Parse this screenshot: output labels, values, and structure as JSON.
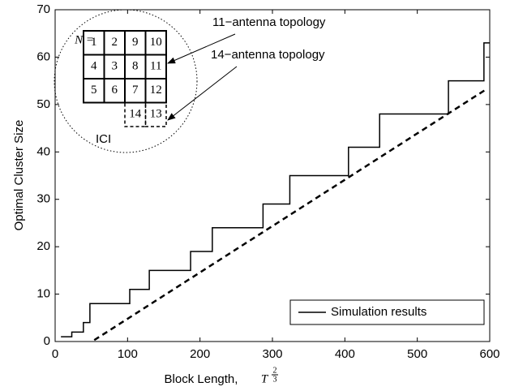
{
  "chart_data": {
    "type": "line",
    "xlabel": "Block Length,",
    "xlabel_math": {
      "base": "T",
      "num": "2",
      "den": "3"
    },
    "ylabel": "Optimal Cluster Size",
    "xlim": [
      0,
      600
    ],
    "ylim": [
      0,
      70
    ],
    "xticks": [
      0,
      100,
      200,
      300,
      400,
      500,
      600
    ],
    "yticks": [
      0,
      10,
      20,
      30,
      40,
      50,
      60,
      70
    ],
    "grid": false,
    "legend": "lower right",
    "series": [
      {
        "name": "Simulation results",
        "color": "#000000",
        "style": "solid",
        "x": [
          8,
          23,
          23,
          39,
          39,
          48,
          48,
          103,
          103,
          130,
          130,
          187,
          187,
          217,
          217,
          287,
          287,
          324,
          324,
          405,
          405,
          448,
          448,
          543,
          543,
          592,
          592,
          600
        ],
        "values": [
          1,
          1,
          2,
          2,
          4,
          4,
          8,
          8,
          11,
          11,
          15,
          15,
          19,
          19,
          24,
          24,
          29,
          29,
          35,
          35,
          41,
          41,
          48,
          48,
          55,
          55,
          63,
          63
        ]
      },
      {
        "color": "#000000",
        "style": "dashed",
        "x": [
          54,
          593
        ],
        "values": [
          0.3,
          53
        ]
      }
    ],
    "annotations": [
      "11−antenna topology",
      "14−antenna topology"
    ],
    "inset": {
      "label": "N =",
      "cells": [
        [
          "1",
          "2",
          "9",
          "10"
        ],
        [
          "4",
          "3",
          "8",
          "11"
        ],
        [
          "5",
          "6",
          "7",
          "12"
        ]
      ],
      "dashed_cells": [
        "14",
        "13"
      ],
      "region": "ICI"
    }
  }
}
